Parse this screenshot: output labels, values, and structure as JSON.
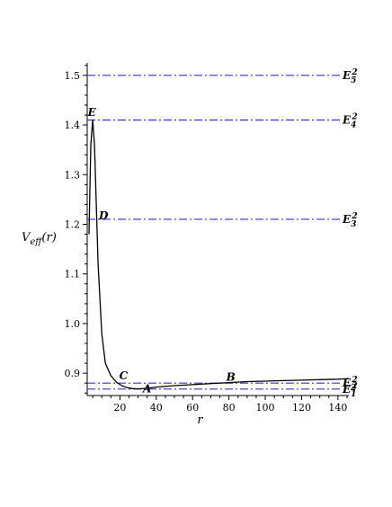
{
  "chart_data": {
    "type": "line",
    "title": "",
    "xlabel": "r",
    "ylabel": "V_eff(r)",
    "ylabel_parts": {
      "base": "V",
      "sub": "eff",
      "arg": "(r)"
    },
    "xlim": [
      2,
      146
    ],
    "ylim": [
      0.855,
      1.525
    ],
    "xticks": [
      20,
      40,
      60,
      80,
      100,
      120,
      140
    ],
    "yticks": [
      0.9,
      1.0,
      1.1,
      1.2,
      1.3,
      1.4,
      1.5
    ],
    "grid": false,
    "curve_color": "#000000",
    "level_color": "#3333cc",
    "series": [
      {
        "x": [
          3,
          4,
          5,
          6,
          8,
          10,
          12,
          15,
          18,
          21,
          24,
          27,
          30,
          33,
          36,
          40,
          50,
          60,
          70,
          80,
          90,
          100,
          110,
          120,
          130,
          140,
          146
        ],
        "y": [
          1.18,
          1.36,
          1.41,
          1.36,
          1.12,
          0.98,
          0.92,
          0.895,
          0.882,
          0.875,
          0.871,
          0.869,
          0.8685,
          0.869,
          0.87,
          0.872,
          0.875,
          0.877,
          0.879,
          0.881,
          0.883,
          0.884,
          0.885,
          0.886,
          0.887,
          0.888,
          0.889
        ]
      }
    ],
    "energy_levels": [
      {
        "y": 0.868,
        "label": "E",
        "sub": "1",
        "sup": "2"
      },
      {
        "y": 0.88,
        "label": "E",
        "sub": "2",
        "sup": "2"
      },
      {
        "y": 1.21,
        "label": "E",
        "sub": "3",
        "sup": "2"
      },
      {
        "y": 1.41,
        "label": "E",
        "sub": "4",
        "sup": "2"
      },
      {
        "y": 1.5,
        "label": "E",
        "sub": "5",
        "sup": "2"
      }
    ],
    "annotations": [
      {
        "text": "A",
        "x": 35,
        "y": 0.861
      },
      {
        "text": "B",
        "x": 81,
        "y": 0.885
      },
      {
        "text": "C",
        "x": 22,
        "y": 0.888
      },
      {
        "text": "D",
        "x": 11,
        "y": 1.21
      },
      {
        "text": "E",
        "x": 4.5,
        "y": 1.418
      }
    ]
  }
}
